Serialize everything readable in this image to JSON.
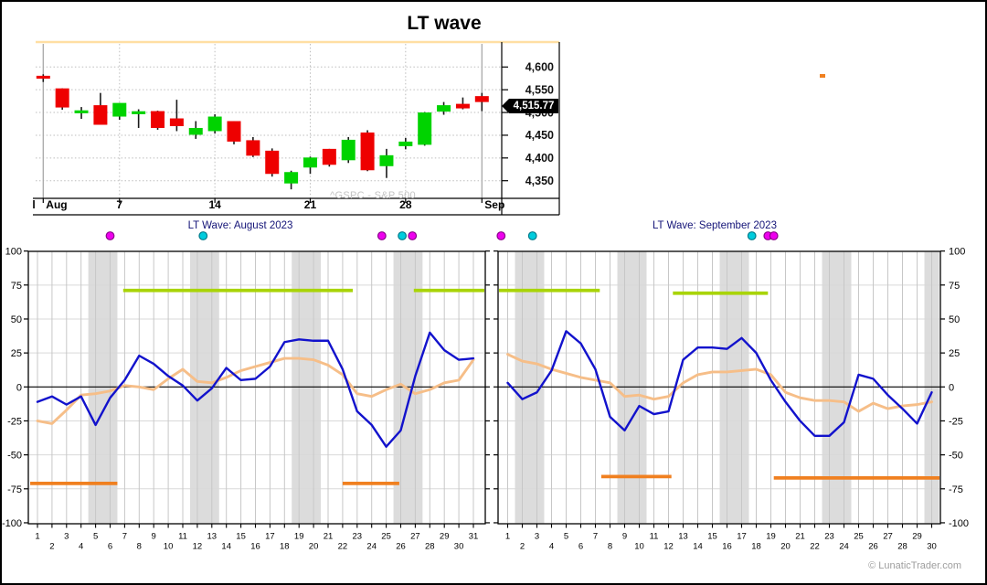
{
  "page": {
    "title": "LT wave",
    "copyright": "© LunaticTrader.com"
  },
  "colors": {
    "candle_up": "#00d300",
    "candle_down": "#ee0000",
    "wick": "#1a1a1a",
    "top_border_line": "#ffdfa3",
    "grid_dotted": "#bdbdbd",
    "grid_solid": "#a9a9a9",
    "panel_day_grid": "#c7c7c7",
    "panel_value_grid": "#d9d9d9",
    "weekend_band": "#dcdcdc",
    "zero_line": "#000000",
    "wave_fast": "#1212cc",
    "wave_slow": "#f6be88",
    "signal_high": "#a9d408",
    "signal_low": "#f08020",
    "dot_magenta": "#ee00ee",
    "dot_magenta_border": "#8b008b",
    "dot_cyan": "#00ccdd",
    "dot_cyan_border": "#007a8a",
    "price_tag_bg": "#000000",
    "price_tag_text": "#ffffff",
    "watermark_text": "#c3c3c3",
    "panel_title_text": "#141478"
  },
  "chart_data": [
    {
      "id": "price-chart",
      "type": "candlestick",
      "title": "LT wave",
      "symbol_watermark": "^GSPC - S&P 500",
      "last_price_label": "4,515.77",
      "last_price": 4515.77,
      "ylim": [
        4311,
        4655
      ],
      "y_ticks": [
        4600,
        4550,
        4500,
        4450,
        4400,
        4350
      ],
      "y_tick_labels": [
        "4,600",
        "4,550",
        "4,500",
        "4,450",
        "4,400",
        "4,350"
      ],
      "left_clipped_label": "l",
      "x_gridlines": [
        {
          "label": "Aug",
          "index": 0,
          "solid": true
        },
        {
          "label": "7",
          "index": 4,
          "solid": false
        },
        {
          "label": "14",
          "index": 9,
          "solid": false
        },
        {
          "label": "21",
          "index": 14,
          "solid": false
        },
        {
          "label": "28",
          "index": 19,
          "solid": false
        },
        {
          "label": "Sep",
          "index": 23,
          "solid": true
        }
      ],
      "candles": [
        [
          "Aug 1",
          4578,
          4584,
          4567,
          4577,
          "down"
        ],
        [
          "Aug 2",
          4553,
          4553,
          4506,
          4511,
          "down"
        ],
        [
          "Aug 3",
          4503,
          4512,
          4486,
          4500,
          "up"
        ],
        [
          "Aug 4",
          4516,
          4543,
          4473,
          4473,
          "down"
        ],
        [
          "Aug 7",
          4491,
          4521,
          4484,
          4521,
          "up"
        ],
        [
          "Aug 8",
          4500,
          4507,
          4466,
          4499,
          "up"
        ],
        [
          "Aug 9",
          4503,
          4504,
          4462,
          4466,
          "down"
        ],
        [
          "Aug 10",
          4487,
          4528,
          4459,
          4470,
          "down"
        ],
        [
          "Aug 11",
          4451,
          4481,
          4442,
          4466,
          "up"
        ],
        [
          "Aug 14",
          4459,
          4496,
          4454,
          4491,
          "up"
        ],
        [
          "Aug 15",
          4481,
          4481,
          4430,
          4436,
          "down"
        ],
        [
          "Aug 16",
          4439,
          4446,
          4402,
          4405,
          "down"
        ],
        [
          "Aug 17",
          4416,
          4421,
          4359,
          4365,
          "down"
        ],
        [
          "Aug 18",
          4344,
          4372,
          4331,
          4369,
          "up"
        ],
        [
          "Aug 21",
          4379,
          4403,
          4365,
          4401,
          "up"
        ],
        [
          "Aug 22",
          4420,
          4420,
          4381,
          4385,
          "down"
        ],
        [
          "Aug 23",
          4395,
          4446,
          4389,
          4440,
          "up"
        ],
        [
          "Aug 24",
          4456,
          4461,
          4371,
          4373,
          "down"
        ],
        [
          "Aug 25",
          4382,
          4420,
          4356,
          4406,
          "up"
        ],
        [
          "Aug 28",
          4426,
          4444,
          4419,
          4436,
          "up"
        ],
        [
          "Aug 29",
          4429,
          4501,
          4427,
          4500,
          "up"
        ],
        [
          "Aug 30",
          4502,
          4523,
          4495,
          4516,
          "up"
        ],
        [
          "Aug 31",
          4519,
          4533,
          4507,
          4509,
          "down"
        ],
        [
          "Sep 1",
          4536,
          4543,
          4503,
          4523,
          "down"
        ]
      ]
    },
    {
      "id": "lt-wave-august",
      "type": "line",
      "title": "LT Wave: August 2023",
      "ylim": [
        -100,
        100
      ],
      "y_ticks": [
        100,
        75,
        50,
        25,
        0,
        -25,
        -50,
        -75,
        -100
      ],
      "x_tick_labels": [
        1,
        2,
        3,
        4,
        5,
        6,
        7,
        8,
        9,
        10,
        11,
        12,
        13,
        14,
        15,
        16,
        17,
        18,
        19,
        20,
        21,
        22,
        23,
        24,
        25,
        26,
        27,
        28,
        29,
        30,
        31
      ],
      "weekend_bands": [
        [
          5,
          6
        ],
        [
          12,
          13
        ],
        [
          19,
          20
        ],
        [
          26,
          27
        ]
      ],
      "series": [
        {
          "name": "wave-fast-blue",
          "values": [
            -11,
            -7,
            -13,
            -7,
            -28,
            -8,
            5,
            23,
            17,
            8,
            1,
            -10,
            -1,
            14,
            5,
            6,
            15,
            33,
            35,
            34,
            34,
            13,
            -18,
            -28,
            -44,
            -32,
            8,
            40,
            27,
            20,
            21
          ]
        },
        {
          "name": "wave-slow-orange",
          "values": [
            -25,
            -27,
            -17,
            -6,
            -5,
            -3,
            1,
            0,
            -2,
            6,
            13,
            4,
            3,
            7,
            12,
            15,
            18,
            21,
            21,
            20,
            16,
            9,
            -5,
            -7,
            -2,
            2,
            -5,
            -2,
            3,
            5,
            20
          ]
        }
      ],
      "signal_segments": [
        {
          "color": "high",
          "level": 71,
          "from": 6.9,
          "to": 22.7
        },
        {
          "color": "high",
          "level": 71,
          "from": 26.9,
          "to": 31.9
        },
        {
          "color": "low",
          "level": -71,
          "from": 0.5,
          "to": 6.5
        },
        {
          "color": "low",
          "level": -71,
          "from": 22.0,
          "to": 25.9
        }
      ],
      "dots": [
        {
          "color": "magenta",
          "day": 6.0
        },
        {
          "color": "cyan",
          "day": 12.4
        },
        {
          "color": "magenta",
          "day": 24.7
        },
        {
          "color": "cyan",
          "day": 26.1
        },
        {
          "color": "magenta",
          "day": 26.8
        }
      ]
    },
    {
      "id": "lt-wave-september",
      "type": "line",
      "title": "LT Wave: September 2023",
      "ylim": [
        -100,
        100
      ],
      "y_ticks": [
        100,
        75,
        50,
        25,
        0,
        -25,
        -50,
        -75,
        -100
      ],
      "x_tick_labels": [
        1,
        2,
        3,
        4,
        5,
        6,
        7,
        8,
        9,
        10,
        11,
        12,
        13,
        14,
        15,
        16,
        17,
        18,
        19,
        20,
        21,
        22,
        23,
        24,
        25,
        26,
        27,
        28,
        29,
        30
      ],
      "weekend_bands": [
        [
          2,
          3
        ],
        [
          9,
          10
        ],
        [
          16,
          17
        ],
        [
          23,
          24
        ],
        [
          30,
          30
        ]
      ],
      "series": [
        {
          "name": "wave-fast-blue",
          "values": [
            3,
            -9,
            -4,
            12,
            41,
            32,
            13,
            -22,
            -32,
            -14,
            -20,
            -18,
            20,
            29,
            29,
            28,
            36,
            25,
            5,
            -11,
            -25,
            -36,
            -36,
            -26,
            9,
            6,
            -6,
            -16,
            -27,
            -4
          ]
        },
        {
          "name": "wave-slow-orange",
          "values": [
            24,
            19,
            17,
            13,
            10,
            7,
            5,
            3,
            -7,
            -6,
            -9,
            -7,
            3,
            9,
            11,
            11,
            12,
            13,
            9,
            -4,
            -8,
            -10,
            -10,
            -11,
            -18,
            -12,
            -16,
            -14,
            -13,
            -11
          ]
        }
      ],
      "signal_segments": [
        {
          "color": "high",
          "level": 71,
          "from": 0.4,
          "to": 7.3
        },
        {
          "color": "high",
          "level": 69,
          "from": 12.3,
          "to": 18.8
        },
        {
          "color": "low",
          "level": -66,
          "from": 7.4,
          "to": 12.2
        },
        {
          "color": "low",
          "level": -67,
          "from": 19.2,
          "to": 30.7
        }
      ],
      "dots": [
        {
          "color": "magenta",
          "day": 0.55
        },
        {
          "color": "cyan",
          "day": 2.7
        },
        {
          "color": "cyan",
          "day": 17.7
        },
        {
          "color": "magenta",
          "day": 18.8
        },
        {
          "color": "magenta",
          "day": 19.2
        }
      ]
    }
  ],
  "misc": {
    "orange_marker": {
      "x": 897,
      "y": 81
    }
  }
}
